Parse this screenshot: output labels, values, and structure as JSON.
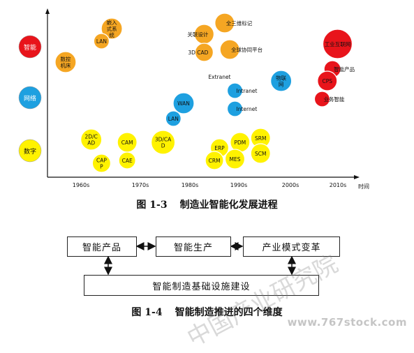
{
  "chart_data": {
    "type": "bubble-timeline",
    "x_axis_label": "时间",
    "x_ticks": [
      "1960s",
      "1970s",
      "1980s",
      "1990s",
      "2000s",
      "2010s"
    ],
    "rows": [
      {
        "label": "智能",
        "color": "#e8141b"
      },
      {
        "label": "网络",
        "color": "#1ea0e0"
      },
      {
        "label": "数字",
        "color": "#fff200"
      }
    ],
    "bubbles": [
      {
        "label": "嵌入\n式系\n统",
        "row": "智能",
        "decade": 1966,
        "dy": -0.65,
        "r": 15,
        "color": "#f5a623",
        "label_side": "center"
      },
      {
        "label": "LAN",
        "row": "智能",
        "decade": 1964,
        "dy": -0.2,
        "r": 11,
        "color": "#f5a623",
        "label_side": "center"
      },
      {
        "label": "数控\n机床",
        "row": "智能",
        "decade": 1957,
        "dy": 0.55,
        "r": 15,
        "color": "#f5a623",
        "label_side": "center"
      },
      {
        "label": "关联设计",
        "row": "智能",
        "decade": 1984,
        "dy": -0.45,
        "r": 14,
        "color": "#f5a623",
        "label_side": "left"
      },
      {
        "label": "全三维标记",
        "row": "智能",
        "decade": 1988,
        "dy": -0.85,
        "r": 14,
        "color": "#f5a623",
        "label_side": "right"
      },
      {
        "label": "3D CAD",
        "row": "智能",
        "decade": 1984,
        "dy": 0.2,
        "r": 13,
        "color": "#f5a623",
        "label_side": "left"
      },
      {
        "label": "全球协同平台",
        "row": "智能",
        "decade": 1989,
        "dy": 0.1,
        "r": 14,
        "color": "#f5a623",
        "label_side": "right"
      },
      {
        "label": "工业互联网",
        "row": "智能",
        "decade": 2010,
        "dy": -0.1,
        "r": 21,
        "color": "#e8141b",
        "label_side": "center"
      },
      {
        "label": "智能产品",
        "row": "智能",
        "decade": 2009,
        "dy": 0.8,
        "r": 12,
        "color": "#e8141b",
        "label_side": "right"
      },
      {
        "label": "CPS",
        "row": "网络",
        "decade": 2008,
        "dy": -0.6,
        "r": 14,
        "color": "#e8141b",
        "label_side": "center"
      },
      {
        "label": "业务智能",
        "row": "网络",
        "decade": 2007,
        "dy": 0.05,
        "r": 11,
        "color": "#e8141b",
        "label_side": "right"
      },
      {
        "label": "物联\n网",
        "row": "网络",
        "decade": 1999,
        "dy": -0.6,
        "r": 15,
        "color": "#1ea0e0",
        "label_side": "center"
      },
      {
        "label": "Extranet",
        "row": "网络",
        "decade": 1987,
        "dy": -0.75,
        "r": 0,
        "color": "#1ea0e0",
        "label_side": "text"
      },
      {
        "label": "Intranet",
        "row": "网络",
        "decade": 1990,
        "dy": -0.25,
        "r": 11,
        "color": "#1ea0e0",
        "label_side": "right"
      },
      {
        "label": "Internet",
        "row": "网络",
        "decade": 1990,
        "dy": 0.4,
        "r": 11,
        "color": "#1ea0e0",
        "label_side": "right"
      },
      {
        "label": "WAN",
        "row": "网络",
        "decade": 1980,
        "dy": 0.2,
        "r": 15,
        "color": "#1ea0e0",
        "label_side": "center"
      },
      {
        "label": "LAN",
        "row": "网络",
        "decade": 1978,
        "dy": 0.75,
        "r": 11,
        "color": "#1ea0e0",
        "label_side": "center"
      },
      {
        "label": "2D/C\nAD",
        "row": "数字",
        "decade": 1962,
        "dy": -0.4,
        "r": 15,
        "color": "#fff200",
        "label_side": "center"
      },
      {
        "label": "CAM",
        "row": "数字",
        "decade": 1969,
        "dy": -0.3,
        "r": 14,
        "color": "#fff200",
        "label_side": "center"
      },
      {
        "label": "CAP\nP",
        "row": "数字",
        "decade": 1964,
        "dy": 0.45,
        "r": 13,
        "color": "#fff200",
        "label_side": "center"
      },
      {
        "label": "CAE",
        "row": "数字",
        "decade": 1969,
        "dy": 0.35,
        "r": 12,
        "color": "#fff200",
        "label_side": "center"
      },
      {
        "label": "3D/CA\nD",
        "row": "数字",
        "decade": 1976,
        "dy": -0.3,
        "r": 17,
        "color": "#fff200",
        "label_side": "center"
      },
      {
        "label": "ERP",
        "row": "数字",
        "decade": 1987,
        "dy": -0.1,
        "r": 13,
        "color": "#fff200",
        "label_side": "center"
      },
      {
        "label": "PDM",
        "row": "数字",
        "decade": 1991,
        "dy": -0.3,
        "r": 14,
        "color": "#fff200",
        "label_side": "center"
      },
      {
        "label": "SRM",
        "row": "数字",
        "decade": 1995,
        "dy": -0.45,
        "r": 14,
        "color": "#fff200",
        "label_side": "center"
      },
      {
        "label": "SCM",
        "row": "数字",
        "decade": 1995,
        "dy": 0.1,
        "r": 14,
        "color": "#fff200",
        "label_side": "center"
      },
      {
        "label": "CRM",
        "row": "数字",
        "decade": 1986,
        "dy": 0.35,
        "r": 13,
        "color": "#fff200",
        "label_side": "center"
      },
      {
        "label": "MES",
        "row": "数字",
        "decade": 1990,
        "dy": 0.3,
        "r": 14,
        "color": "#fff200",
        "label_side": "center"
      }
    ]
  },
  "figure1": {
    "number": "图 1-3",
    "title": "制造业智能化发展进程"
  },
  "figure2": {
    "number": "图 1-4",
    "title": "智能制造推进的四个维度",
    "boxes": {
      "product": "智能产品",
      "production": "智能生产",
      "model": "产业模式变革",
      "infrastructure": "智能制造基础设施建设"
    }
  },
  "watermark": {
    "text": "中国产业研究院",
    "url": "www.767stock.com"
  }
}
